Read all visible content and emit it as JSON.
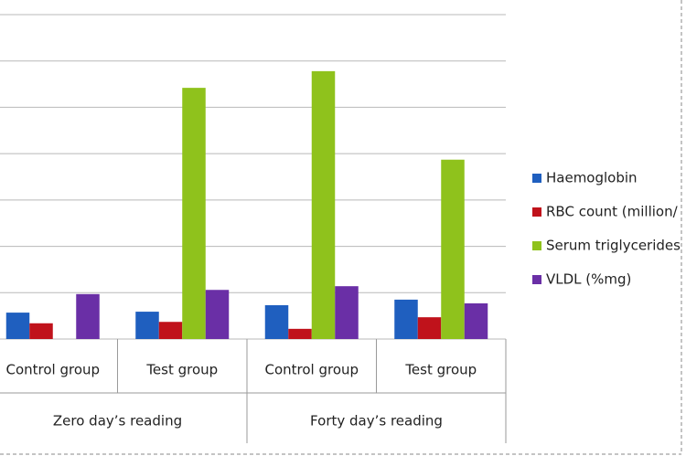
{
  "chart_data": {
    "type": "bar",
    "categories": [
      "Control group",
      "Test group",
      "Control group",
      "Test group"
    ],
    "groups": [
      "Zero day’s reading",
      "Forty day’s reading"
    ],
    "series": [
      {
        "name": "Haemoglobin",
        "color": "#1f5fbf",
        "values": [
          0.57,
          0.59,
          0.73,
          0.85
        ]
      },
      {
        "name": "RBC count (million/",
        "color": "#c0121b",
        "values": [
          0.34,
          0.37,
          0.22,
          0.47
        ]
      },
      {
        "name": "Serum triglycerides",
        "color": "#8fc21c",
        "values": [
          null,
          5.42,
          5.78,
          3.87
        ]
      },
      {
        "name": "VLDL (%mg)",
        "color": "#6a2fa6",
        "values": [
          0.97,
          1.06,
          1.14,
          0.77
        ]
      }
    ],
    "ylim": [
      0,
      7
    ],
    "yticks": [
      0,
      1,
      2,
      3,
      4,
      5,
      6,
      7
    ],
    "grid": true
  }
}
